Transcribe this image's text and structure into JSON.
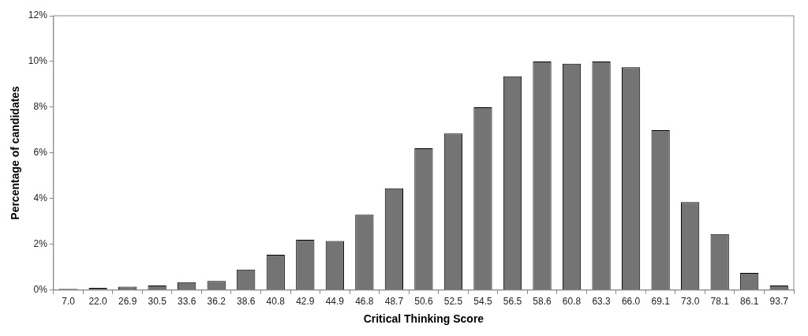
{
  "chart_data": {
    "type": "bar",
    "xlabel": "Critical Thinking Score",
    "ylabel": "Percentage of candidates",
    "categories": [
      "7.0",
      "22.0",
      "26.9",
      "30.5",
      "33.6",
      "36.2",
      "38.6",
      "40.8",
      "42.9",
      "44.9",
      "46.8",
      "48.7",
      "50.6",
      "52.5",
      "54.5",
      "56.5",
      "58.6",
      "60.8",
      "63.3",
      "66.0",
      "69.1",
      "73.0",
      "78.1",
      "86.1",
      "93.7"
    ],
    "values": [
      0.05,
      0.1,
      0.15,
      0.2,
      0.35,
      0.4,
      0.9,
      1.55,
      2.2,
      2.15,
      3.3,
      4.45,
      6.2,
      6.85,
      8.0,
      9.35,
      10.0,
      9.9,
      10.0,
      9.75,
      7.0,
      3.85,
      2.45,
      0.75,
      0.2
    ],
    "color": "#747474",
    "ylim": [
      0,
      12
    ],
    "yticks": [
      {
        "value": 0,
        "label": "0%"
      },
      {
        "value": 2,
        "label": "2%"
      },
      {
        "value": 4,
        "label": "4%"
      },
      {
        "value": 6,
        "label": "6%"
      },
      {
        "value": 8,
        "label": "8%"
      },
      {
        "value": 10,
        "label": "10%"
      },
      {
        "value": 12,
        "label": "12%"
      }
    ],
    "grid": false,
    "legend": false
  }
}
